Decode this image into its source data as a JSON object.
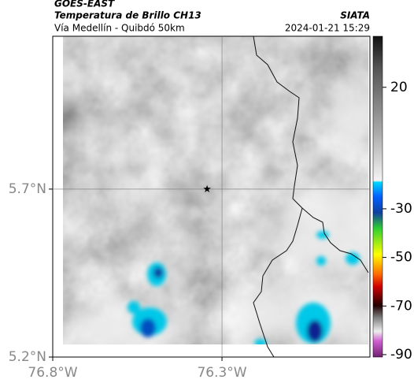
{
  "header": {
    "source": "GOES-EAST",
    "title": "Temperatura de Brillo CH13",
    "subtitle": "Vía Medellín - Quibdó 50km",
    "agency": "SIATA",
    "datetime": "2024-01-21 15:29"
  },
  "map": {
    "lat_lim": [
      5.2,
      6.155
    ],
    "lon_lim": [
      -76.8,
      -75.863
    ],
    "lat_ticks": [
      {
        "value": 5.7,
        "label": "5.7°N"
      },
      {
        "value": 5.2,
        "label": "5.2°N"
      }
    ],
    "lon_ticks": [
      {
        "value": -76.8,
        "label": "76.8°W"
      },
      {
        "value": -76.3,
        "label": "76.3°W"
      }
    ],
    "marker": {
      "lon": -76.344,
      "lat": 5.7
    }
  },
  "colorbar": {
    "lim": [
      -91,
      41
    ],
    "ticks": [
      20,
      -30,
      -50,
      -70,
      -90
    ]
  }
}
